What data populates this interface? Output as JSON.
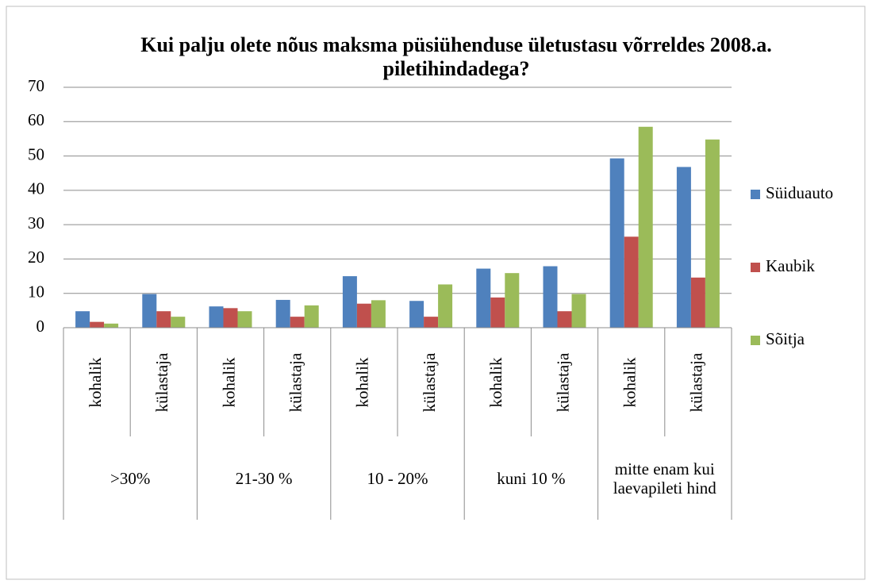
{
  "chart_data": {
    "type": "bar",
    "title": "Kui palju olete nõus maksma püsiühenduse  ületustasu võrreldes 2008.a. piletihindadega?",
    "categories": [
      "kohalik",
      "külastaja",
      "kohalik",
      "külastaja",
      "kohalik",
      "külastaja",
      "kohalik",
      "külastaja",
      "kohalik",
      "külastaja"
    ],
    "groups": [
      ">30%",
      "21-30 %",
      "10 - 20%",
      "kuni 10 %",
      "mitte enam kui laevapileti hind"
    ],
    "series": [
      {
        "name": "Süiduauto",
        "color": "#4f81bd",
        "values": [
          4.8,
          9.8,
          6.2,
          8.1,
          15,
          7.8,
          17.2,
          17.9,
          49.3,
          46.8
        ]
      },
      {
        "name": "Kaubik",
        "color": "#c0504d",
        "values": [
          1.7,
          4.8,
          5.7,
          3.2,
          7,
          3.2,
          8.8,
          4.8,
          26.5,
          14.6
        ]
      },
      {
        "name": "Sõitja",
        "color": "#9bbb59",
        "values": [
          1.2,
          3.2,
          4.8,
          6.5,
          8,
          12.6,
          15.9,
          9.8,
          58.5,
          54.8
        ]
      }
    ],
    "ylim": [
      0,
      70
    ],
    "yticks": [
      0,
      10,
      20,
      30,
      40,
      50,
      60,
      70
    ],
    "grid": true,
    "legend": "right"
  }
}
